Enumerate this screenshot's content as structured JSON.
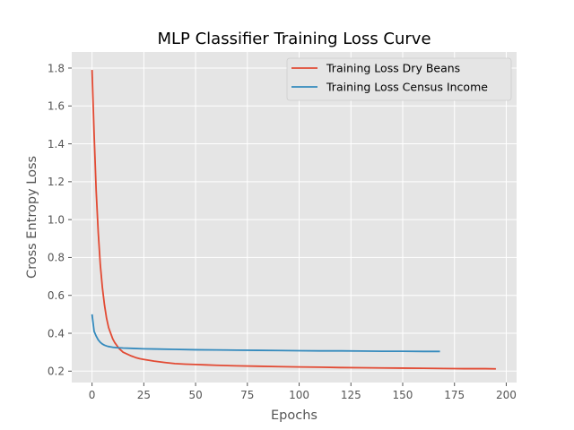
{
  "chart_data": {
    "type": "line",
    "title": "MLP Classifier Training Loss Curve",
    "xlabel": "Epochs",
    "ylabel": "Cross Entropy Loss",
    "xlim": [
      -9.8,
      205
    ],
    "ylim": [
      0.14,
      1.885
    ],
    "xticks": [
      0,
      25,
      50,
      75,
      100,
      125,
      150,
      175,
      200
    ],
    "xtick_labels": [
      "0",
      "25",
      "50",
      "75",
      "100",
      "125",
      "150",
      "175",
      "200"
    ],
    "yticks": [
      0.2,
      0.4,
      0.6,
      0.8,
      1.0,
      1.2,
      1.4,
      1.6,
      1.8
    ],
    "ytick_labels": [
      "0.2",
      "0.4",
      "0.6",
      "0.8",
      "1.0",
      "1.2",
      "1.4",
      "1.6",
      "1.8"
    ],
    "grid": true,
    "legend_position": "top-right",
    "series": [
      {
        "name": "Training Loss Dry Beans",
        "color": "#E24A33",
        "x": [
          0,
          1,
          2,
          3,
          4,
          5,
          6,
          7,
          8,
          9,
          10,
          11,
          12,
          13,
          14,
          15,
          17,
          19,
          21,
          23,
          25,
          30,
          35,
          40,
          45,
          50,
          55,
          60,
          70,
          80,
          90,
          100,
          110,
          120,
          130,
          140,
          150,
          160,
          170,
          180,
          190,
          195
        ],
        "y": [
          1.79,
          1.45,
          1.15,
          0.93,
          0.76,
          0.64,
          0.55,
          0.48,
          0.43,
          0.4,
          0.37,
          0.35,
          0.335,
          0.32,
          0.31,
          0.3,
          0.29,
          0.28,
          0.272,
          0.266,
          0.262,
          0.253,
          0.246,
          0.24,
          0.237,
          0.235,
          0.233,
          0.231,
          0.228,
          0.226,
          0.224,
          0.222,
          0.221,
          0.219,
          0.218,
          0.217,
          0.216,
          0.215,
          0.214,
          0.213,
          0.213,
          0.212
        ]
      },
      {
        "name": "Training Loss Census Income",
        "color": "#348ABD",
        "x": [
          0,
          1,
          2,
          3,
          4,
          5,
          6,
          7,
          8,
          9,
          10,
          12,
          15,
          20,
          25,
          30,
          40,
          50,
          60,
          70,
          80,
          90,
          100,
          110,
          120,
          130,
          140,
          150,
          160,
          168
        ],
        "y": [
          0.5,
          0.41,
          0.385,
          0.365,
          0.352,
          0.343,
          0.337,
          0.333,
          0.33,
          0.328,
          0.326,
          0.324,
          0.322,
          0.32,
          0.318,
          0.317,
          0.315,
          0.313,
          0.312,
          0.311,
          0.31,
          0.309,
          0.308,
          0.307,
          0.307,
          0.306,
          0.305,
          0.305,
          0.304,
          0.304
        ]
      }
    ]
  }
}
